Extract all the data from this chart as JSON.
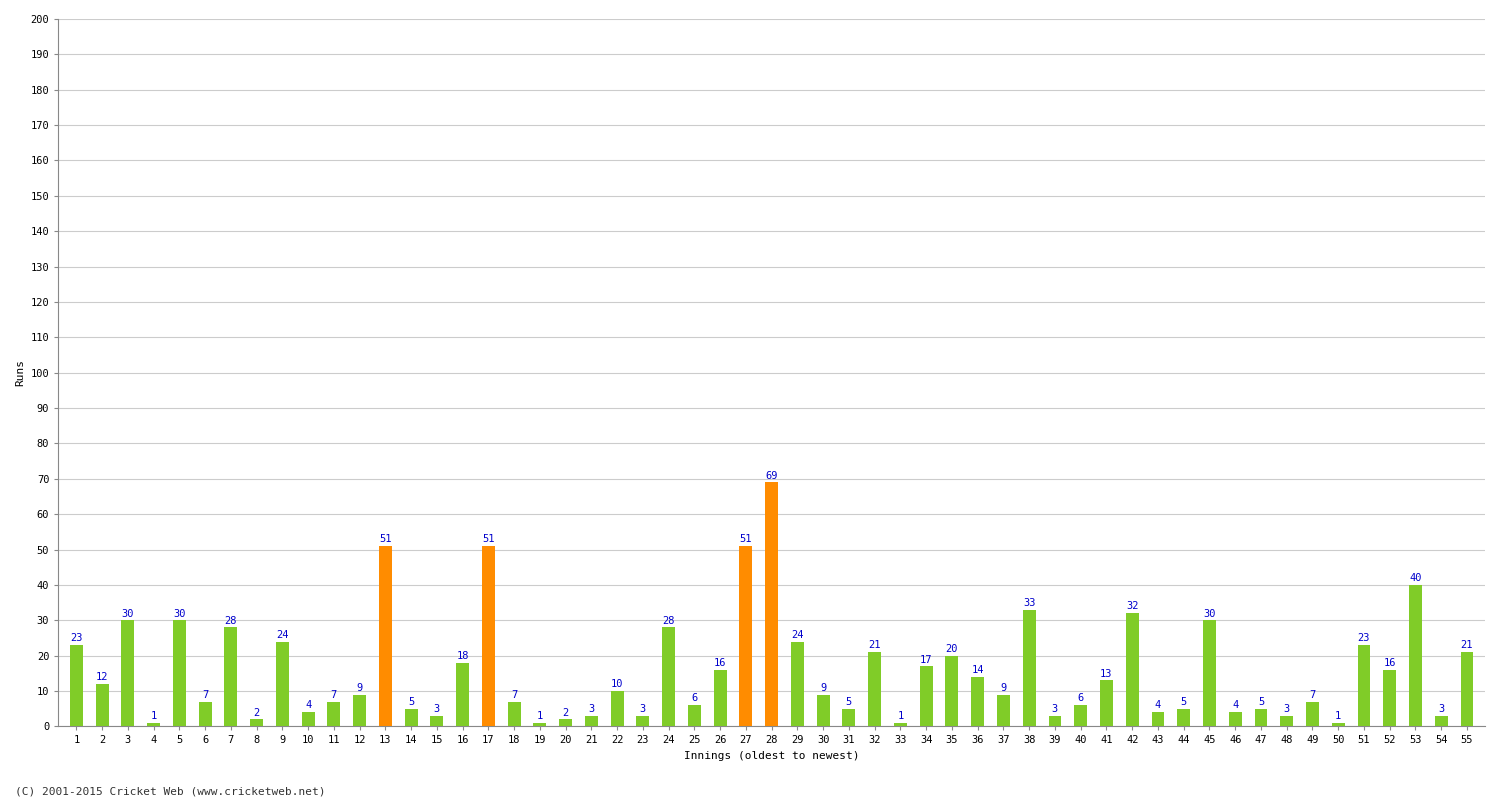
{
  "xlabel": "Innings (oldest to newest)",
  "ylabel": "Runs",
  "values": [
    23,
    12,
    30,
    1,
    30,
    7,
    28,
    2,
    24,
    4,
    7,
    9,
    51,
    5,
    3,
    18,
    51,
    7,
    1,
    2,
    3,
    10,
    3,
    28,
    6,
    16,
    51,
    69,
    24,
    9,
    5,
    21,
    1,
    17,
    20,
    14,
    9,
    33,
    3,
    6,
    13,
    32,
    4,
    5,
    30,
    4,
    5,
    3,
    7,
    1,
    23,
    16,
    40,
    3,
    21
  ],
  "colors": [
    "#80cc28",
    "#80cc28",
    "#80cc28",
    "#80cc28",
    "#80cc28",
    "#80cc28",
    "#80cc28",
    "#80cc28",
    "#80cc28",
    "#80cc28",
    "#80cc28",
    "#80cc28",
    "#ff8c00",
    "#80cc28",
    "#80cc28",
    "#80cc28",
    "#ff8c00",
    "#80cc28",
    "#80cc28",
    "#80cc28",
    "#80cc28",
    "#80cc28",
    "#80cc28",
    "#80cc28",
    "#80cc28",
    "#80cc28",
    "#ff8c00",
    "#ff8c00",
    "#80cc28",
    "#80cc28",
    "#80cc28",
    "#80cc28",
    "#80cc28",
    "#80cc28",
    "#80cc28",
    "#80cc28",
    "#80cc28",
    "#80cc28",
    "#80cc28",
    "#80cc28",
    "#80cc28",
    "#80cc28",
    "#80cc28",
    "#80cc28",
    "#80cc28",
    "#80cc28",
    "#80cc28",
    "#80cc28",
    "#80cc28",
    "#80cc28",
    "#80cc28",
    "#80cc28",
    "#80cc28",
    "#80cc28",
    "#80cc28"
  ],
  "ylim": [
    0,
    200
  ],
  "yticks": [
    0,
    10,
    20,
    30,
    40,
    50,
    60,
    70,
    80,
    90,
    100,
    110,
    120,
    130,
    140,
    150,
    160,
    170,
    180,
    190,
    200
  ],
  "background_color": "#ffffff",
  "grid_color": "#cccccc",
  "label_color": "#0000cc",
  "label_fontsize": 7.5,
  "tick_fontsize": 7.5,
  "axis_label_fontsize": 8,
  "footer": "(C) 2001-2015 Cricket Web (www.cricketweb.net)",
  "footer_fontsize": 8
}
